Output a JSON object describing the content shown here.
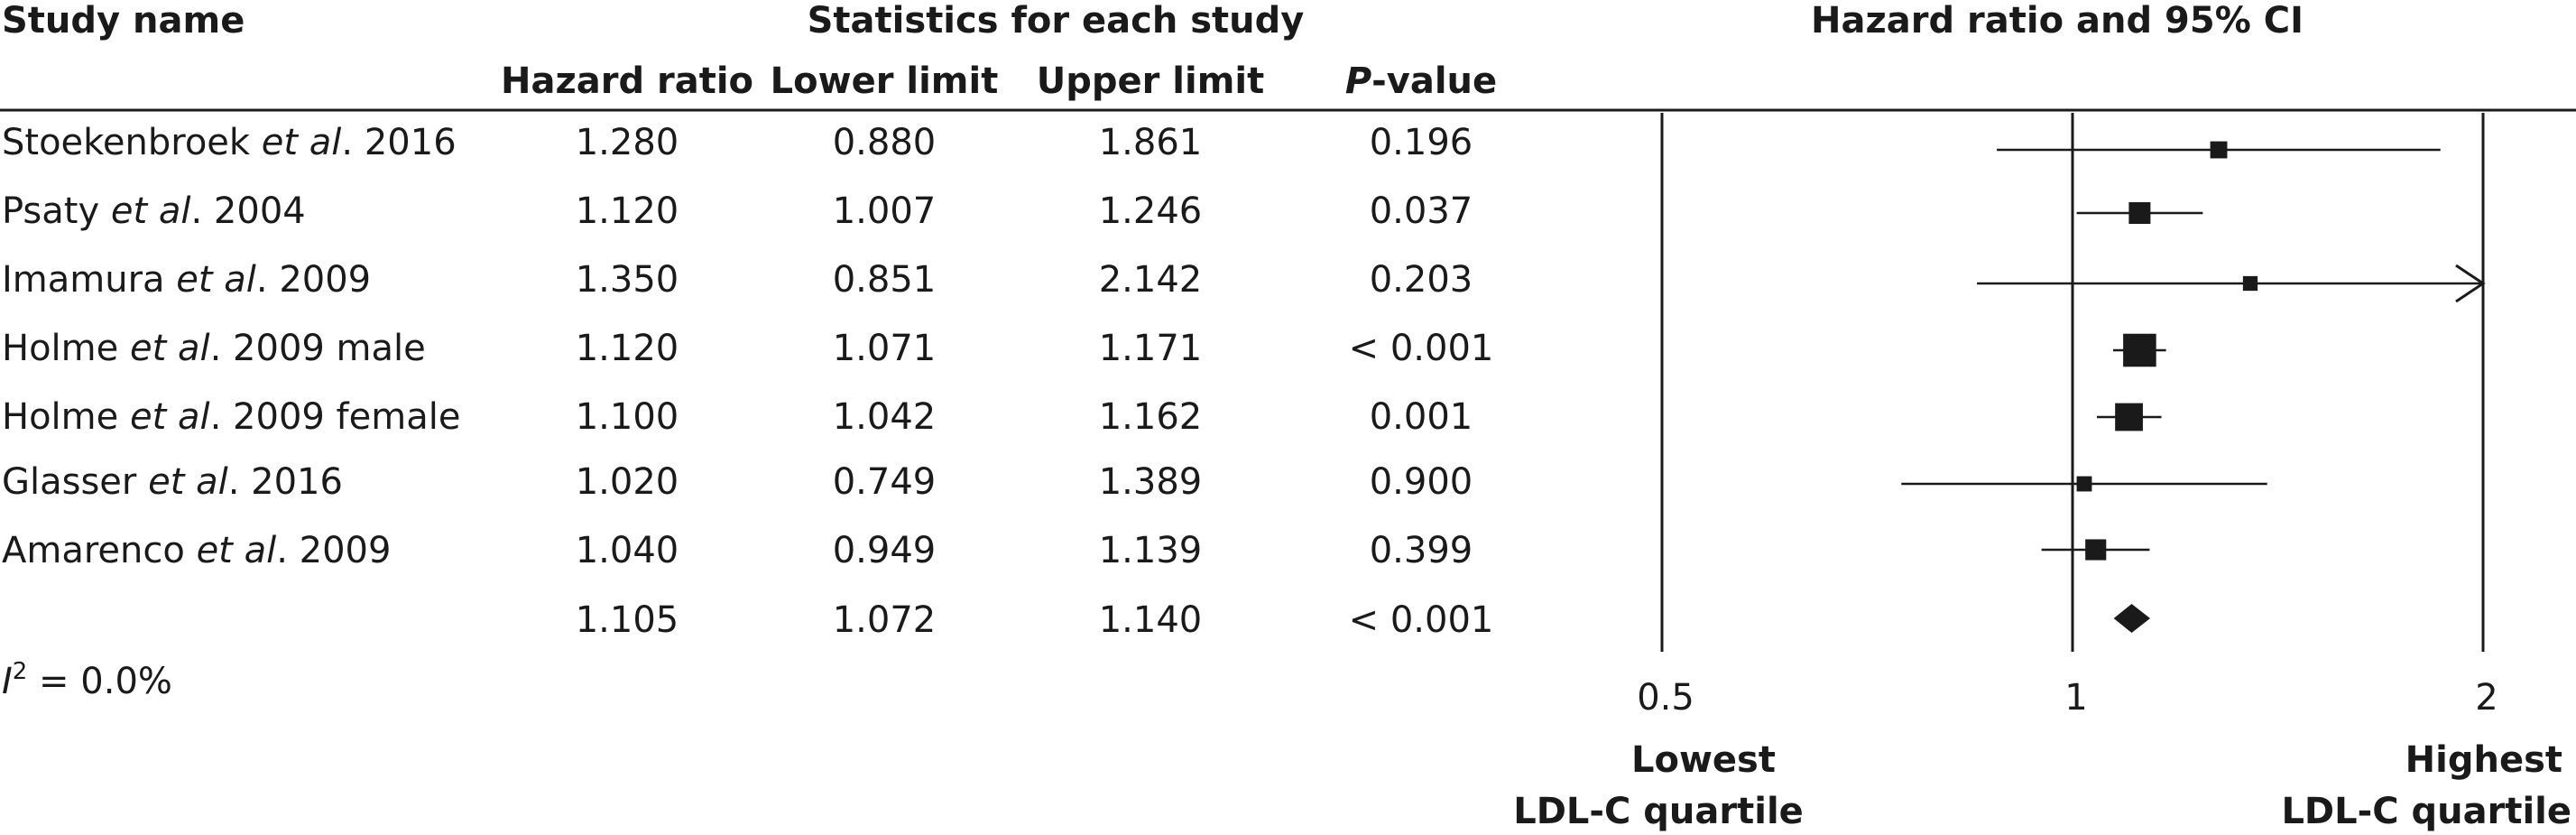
{
  "headers": {
    "study_name": "Study name",
    "statistics": "Statistics for each study",
    "plot": "Hazard ratio and 95% CI",
    "hazard_ratio": "Hazard ratio",
    "lower_limit": "Lower limit",
    "upper_limit": "Upper limit",
    "p_value_italic": "P",
    "p_value_rest": "-value"
  },
  "heterogeneity": {
    "symbol": "I",
    "superscript": "2",
    "value": " = 0.0%"
  },
  "studies": [
    {
      "author": "Stoekenbroek",
      "etal": "et al",
      "suffix": ". 2016",
      "hr": "1.280",
      "lower": "0.880",
      "upper": "1.861",
      "p": "0.196"
    },
    {
      "author": "Psaty",
      "etal": "et al",
      "suffix": ". 2004",
      "hr": "1.120",
      "lower": "1.007",
      "upper": "1.246",
      "p": "0.037"
    },
    {
      "author": "Imamura",
      "etal": "et al",
      "suffix": ". 2009",
      "hr": "1.350",
      "lower": "0.851",
      "upper": "2.142",
      "p": "0.203"
    },
    {
      "author": "Holme",
      "etal": "et al",
      "suffix": ". 2009 male",
      "hr": "1.120",
      "lower": "1.071",
      "upper": "1.171",
      "p": "< 0.001"
    },
    {
      "author": "Holme",
      "etal": "et al",
      "suffix": ". 2009 female",
      "hr": "1.100",
      "lower": "1.042",
      "upper": "1.162",
      "p": "0.001"
    },
    {
      "author": "Glasser",
      "etal": "et al",
      "suffix": ". 2016",
      "hr": "1.020",
      "lower": "0.749",
      "upper": "1.389",
      "p": "0.900"
    },
    {
      "author": "Amarenco",
      "etal": "et al",
      "suffix": ". 2009",
      "hr": "1.040",
      "lower": "0.949",
      "upper": "1.139",
      "p": "0.399"
    }
  ],
  "pooled": {
    "hr": "1.105",
    "lower": "1.072",
    "upper": "1.140",
    "p": "< 0.001"
  },
  "axis": {
    "ticks": [
      "0.5",
      "1",
      "2"
    ],
    "left_label_1": "Lowest",
    "left_label_2": "LDL-C quartile",
    "right_label_1": "Highest",
    "right_label_2": "LDL-C quartile"
  },
  "chart_data": {
    "type": "scatter",
    "x_scale": "log",
    "xlim": [
      0.5,
      2
    ],
    "x_ticks": [
      0.5,
      1,
      2
    ],
    "reference_lines": [
      0.5,
      1,
      2
    ],
    "points": [
      {
        "x": 1.28,
        "lower": 0.88,
        "upper": 1.861,
        "weight": 0.1
      },
      {
        "x": 1.12,
        "lower": 1.007,
        "upper": 1.246,
        "weight": 0.25
      },
      {
        "x": 1.35,
        "lower": 0.851,
        "upper": 2.142,
        "weight": 0.05
      },
      {
        "x": 1.12,
        "lower": 1.071,
        "upper": 1.171,
        "weight": 0.9
      },
      {
        "x": 1.1,
        "lower": 1.042,
        "upper": 1.162,
        "weight": 0.55
      },
      {
        "x": 1.02,
        "lower": 0.749,
        "upper": 1.389,
        "weight": 0.06
      },
      {
        "x": 1.04,
        "lower": 0.949,
        "upper": 1.139,
        "weight": 0.22
      }
    ],
    "pooled": {
      "x": 1.105,
      "lower": 1.072,
      "upper": 1.14
    },
    "colors": {
      "ink": "#1a1a1a",
      "background": "#ffffff"
    }
  }
}
